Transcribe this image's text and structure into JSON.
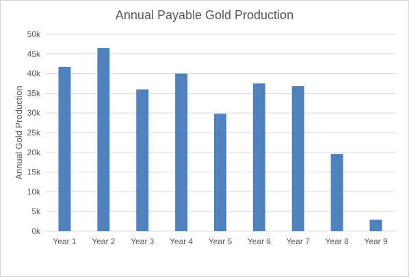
{
  "chart_data": {
    "type": "bar",
    "title": "Annual Payable Gold Production",
    "xlabel": "",
    "ylabel": "Annual Gold Production",
    "categories": [
      "Year 1",
      "Year 2",
      "Year 3",
      "Year 4",
      "Year 5",
      "Year 6",
      "Year 7",
      "Year 8",
      "Year 9"
    ],
    "values": [
      41700,
      46500,
      36000,
      40000,
      29800,
      37500,
      36800,
      19600,
      2900
    ],
    "ylim": [
      0,
      50000
    ],
    "yticks": [
      {
        "value": 0,
        "label": "0k"
      },
      {
        "value": 5000,
        "label": "5k"
      },
      {
        "value": 10000,
        "label": "10k"
      },
      {
        "value": 15000,
        "label": "15k"
      },
      {
        "value": 20000,
        "label": "20k"
      },
      {
        "value": 25000,
        "label": "25k"
      },
      {
        "value": 30000,
        "label": "30k"
      },
      {
        "value": 35000,
        "label": "35k"
      },
      {
        "value": 40000,
        "label": "40k"
      },
      {
        "value": 45000,
        "label": "45k"
      },
      {
        "value": 50000,
        "label": "50k"
      }
    ],
    "grid": true,
    "legend": "none",
    "colors": {
      "bar": "#4F81BD",
      "grid": "#D9D9D9",
      "text": "#595959"
    }
  }
}
